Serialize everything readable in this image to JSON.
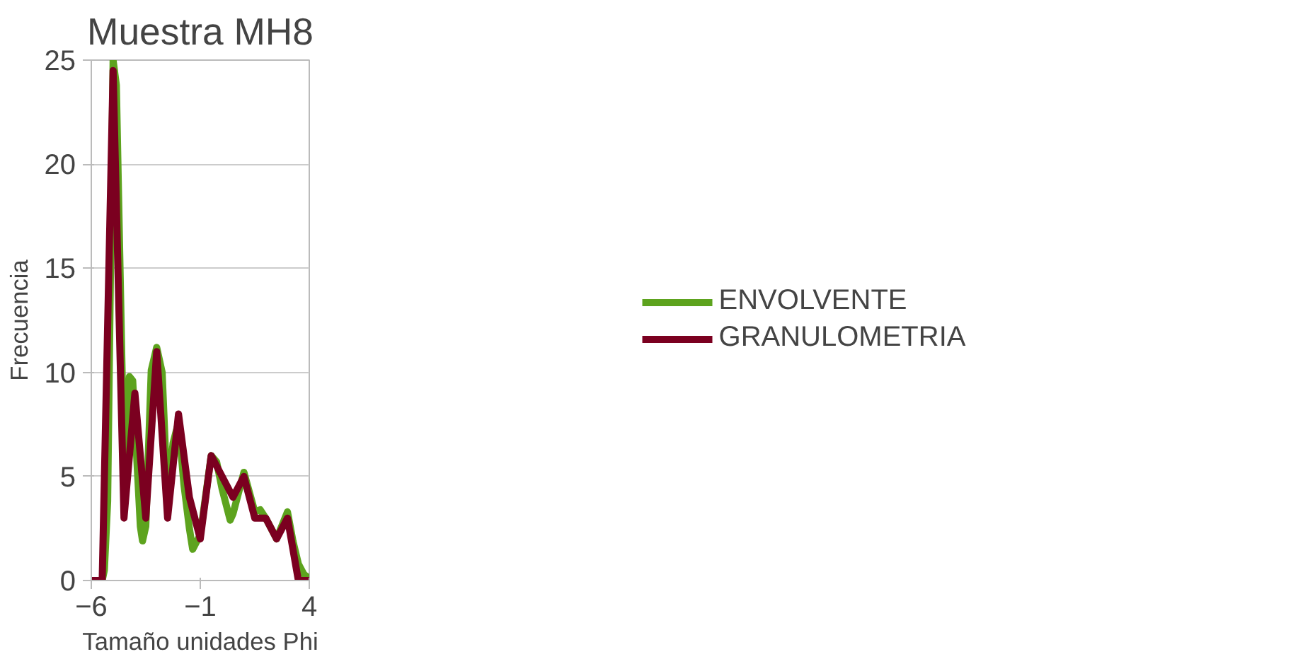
{
  "chart_data": {
    "type": "line",
    "title": "Muestra MH8",
    "xlabel": "Tamaño unidades Phi",
    "ylabel": "Frecuencia",
    "xlim": [
      -6,
      4
    ],
    "xticks": [
      -6,
      -1,
      4
    ],
    "ylim": [
      0,
      25
    ],
    "yticks": [
      0,
      5,
      10,
      15,
      20,
      25
    ],
    "grid": "y",
    "legend": "right",
    "marker": "none",
    "line_style": "solid",
    "series": [
      {
        "name": "ENVOLVENTE",
        "color": "#5da31e",
        "x": [
          -6,
          -5.5,
          -5.4,
          -5.25,
          -5,
          -4.85,
          -4.5,
          -4.25,
          -4.1,
          -3.75,
          -3.65,
          -3.5,
          -3.25,
          -3,
          -2.75,
          -2.5,
          -2.25,
          -2,
          -1.75,
          -1.5,
          -1.35,
          -1.2,
          -1,
          -0.5,
          -0.25,
          0,
          0.37,
          0.5,
          1,
          1.5,
          1.75,
          2,
          2.5,
          3,
          3.25,
          3.5,
          3.75,
          4
        ],
        "values": [
          0,
          0,
          0.5,
          3.8,
          25,
          23.8,
          5.5,
          9.8,
          9.6,
          2.6,
          1.9,
          2.6,
          10.1,
          11.2,
          10,
          3.8,
          6.6,
          7.6,
          4.6,
          2.5,
          1.5,
          1.8,
          2.2,
          6,
          5.7,
          4.4,
          2.9,
          3.2,
          5.2,
          3.3,
          3.4,
          3,
          2,
          3.3,
          1.9,
          0.8,
          0.3,
          0.1
        ]
      },
      {
        "name": "GRANULOMETRIA",
        "color": "#7b0020",
        "x": [
          -6,
          -5.5,
          -5,
          -4.5,
          -4,
          -3.5,
          -3,
          -2.5,
          -2,
          -1.5,
          -1,
          -0.5,
          0.5,
          1,
          1.5,
          2,
          2.5,
          3,
          3.5,
          4
        ],
        "values": [
          0,
          0,
          24.5,
          3,
          9,
          3,
          11,
          3,
          8,
          4,
          2,
          6,
          4,
          5,
          3,
          3,
          2,
          3,
          0,
          0
        ]
      }
    ]
  }
}
